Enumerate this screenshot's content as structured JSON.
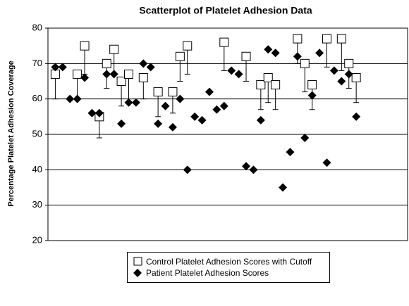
{
  "chart_data": {
    "type": "scatter",
    "title": "Scatterplot of Platelet Adhesion Data",
    "y_label": "Percentage Platelet Adhesion Coverage",
    "xlim": [
      0,
      49
    ],
    "ylim": [
      20,
      80
    ],
    "yticks": [
      20,
      30,
      40,
      50,
      60,
      70,
      80
    ],
    "grid": true,
    "series": [
      {
        "name": "Control Platelet Adhesion Scores with Cutoff",
        "marker": "square",
        "color": "#ffffff",
        "x": [
          1,
          4,
          5,
          7,
          8,
          9,
          10,
          11,
          13,
          15,
          17,
          18,
          19,
          24,
          27,
          29,
          30,
          31,
          34,
          35,
          36,
          38,
          40,
          41,
          42
        ],
        "values": [
          67,
          67,
          75,
          55,
          70,
          74,
          65,
          67,
          66,
          62,
          62,
          72,
          75,
          76,
          72,
          64,
          66,
          64,
          77,
          70,
          64,
          77,
          77,
          70,
          66
        ],
        "error": [
          7,
          7,
          8,
          6,
          7,
          7,
          7,
          8,
          6,
          7,
          6,
          7,
          8,
          8,
          7,
          7,
          7,
          7,
          7,
          8,
          7,
          8,
          9,
          7,
          7
        ]
      },
      {
        "name": "Patient Platelet Adhesion Scores",
        "marker": "diamond",
        "color": "#000000",
        "x": [
          1,
          2,
          3,
          4,
          5,
          6,
          7,
          8,
          9,
          10,
          11,
          12,
          13,
          14,
          15,
          16,
          17,
          18,
          19,
          20,
          21,
          22,
          23,
          24,
          25,
          26,
          27,
          28,
          29,
          30,
          31,
          32,
          33,
          34,
          35,
          36,
          37,
          38,
          39,
          40,
          41,
          42
        ],
        "values": [
          69,
          69,
          60,
          60,
          66,
          56,
          56,
          67,
          67,
          53,
          59,
          59,
          70,
          69,
          53,
          58,
          52,
          60,
          40,
          55,
          54,
          62,
          57,
          58,
          68,
          67,
          41,
          40,
          54,
          74,
          73,
          35,
          45,
          72,
          49,
          61,
          73,
          42,
          68,
          65,
          67,
          55
        ]
      }
    ]
  }
}
